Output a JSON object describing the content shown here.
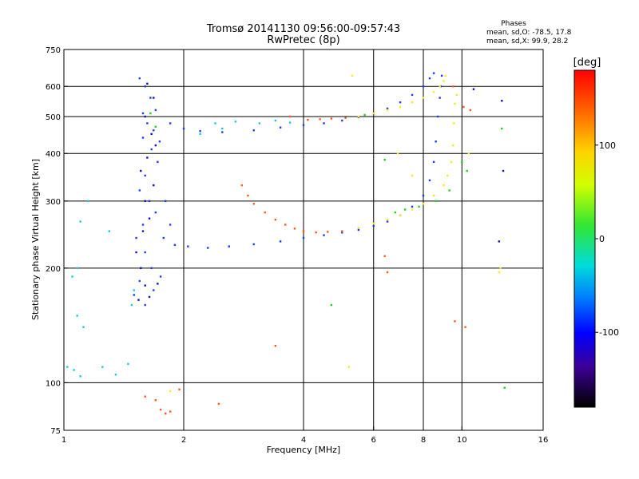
{
  "chart_data": {
    "type": "scatter",
    "title": "Tromsø 20141130 09:56:00-09:57:43",
    "subtitle": "RwPretec (8p)",
    "stats": {
      "heading": "Phases",
      "line_o": "mean, sd,O:  -78.5, 17.8",
      "line_x": "mean, sd,X:  99.9, 28.2"
    },
    "xlabel": "Frequency [MHz]",
    "ylabel": "Stationary phase Virtual Height [km]",
    "x_scale": "log2",
    "y_scale": "log",
    "xlim": [
      1,
      16
    ],
    "ylim": [
      75,
      750
    ],
    "x_ticks": [
      1,
      2,
      4,
      6,
      8,
      10,
      16
    ],
    "y_ticks": [
      75,
      100,
      200,
      300,
      400,
      500,
      600,
      750
    ],
    "x_grid": [
      2,
      4,
      6,
      8,
      10
    ],
    "y_grid": [
      100,
      200,
      300,
      400,
      500,
      600
    ],
    "grid": true,
    "colorbar": {
      "label": "[deg]",
      "range": [
        -180,
        180
      ],
      "ticks": [
        100,
        0,
        -100
      ]
    },
    "series": [
      {
        "color": "#1a3cff",
        "points": [
          [
            1.55,
            630
          ],
          [
            1.6,
            600
          ],
          [
            1.65,
            560
          ],
          [
            1.7,
            520
          ],
          [
            1.62,
            480
          ],
          [
            1.58,
            440
          ],
          [
            1.66,
            410
          ],
          [
            1.72,
            380
          ],
          [
            1.6,
            350
          ],
          [
            1.55,
            320
          ],
          [
            1.64,
            300
          ],
          [
            1.7,
            280
          ],
          [
            1.58,
            260
          ],
          [
            1.52,
            240
          ],
          [
            1.6,
            220
          ],
          [
            1.66,
            200
          ],
          [
            1.55,
            185
          ],
          [
            1.5,
            170
          ],
          [
            1.6,
            160
          ],
          [
            1.68,
            175
          ],
          [
            1.75,
            190
          ],
          [
            1.58,
            510
          ],
          [
            1.68,
            460
          ],
          [
            1.74,
            430
          ],
          [
            1.8,
            300
          ],
          [
            1.85,
            260
          ],
          [
            1.78,
            240
          ],
          [
            1.9,
            230
          ],
          [
            2.05,
            228
          ],
          [
            2.3,
            226
          ],
          [
            2.6,
            228
          ],
          [
            3.0,
            231
          ],
          [
            3.5,
            235
          ],
          [
            4.0,
            240
          ],
          [
            4.5,
            244
          ],
          [
            5.0,
            248
          ],
          [
            5.5,
            252
          ],
          [
            6.0,
            258
          ],
          [
            6.5,
            265
          ],
          [
            7.0,
            275
          ],
          [
            7.5,
            290
          ],
          [
            8.0,
            310
          ],
          [
            8.3,
            340
          ],
          [
            8.5,
            380
          ],
          [
            8.6,
            430
          ],
          [
            8.7,
            500
          ],
          [
            8.8,
            560
          ],
          [
            8.85,
            600
          ],
          [
            8.9,
            640
          ],
          [
            1.85,
            480
          ],
          [
            2.0,
            465
          ],
          [
            2.2,
            458
          ],
          [
            2.5,
            455
          ],
          [
            3.0,
            460
          ],
          [
            3.5,
            468
          ],
          [
            4.0,
            475
          ],
          [
            4.5,
            480
          ],
          [
            5.0,
            488
          ],
          [
            5.5,
            498
          ],
          [
            6.0,
            510
          ],
          [
            6.5,
            525
          ],
          [
            7.0,
            545
          ],
          [
            7.5,
            570
          ],
          [
            8.0,
            600
          ],
          [
            8.3,
            630
          ],
          [
            8.5,
            650
          ]
        ]
      },
      {
        "color": "#19c8e8",
        "points": [
          [
            1.05,
            190
          ],
          [
            1.08,
            200
          ],
          [
            1.1,
            265
          ],
          [
            1.15,
            300
          ],
          [
            1.08,
            150
          ],
          [
            1.12,
            140
          ],
          [
            1.02,
            110
          ],
          [
            1.06,
            108
          ],
          [
            1.1,
            104
          ],
          [
            1.25,
            110
          ],
          [
            1.35,
            105
          ],
          [
            1.45,
            112
          ],
          [
            1.48,
            160
          ],
          [
            1.5,
            175
          ],
          [
            1.3,
            250
          ],
          [
            2.4,
            480
          ],
          [
            2.7,
            485
          ],
          [
            3.1,
            480
          ],
          [
            3.4,
            488
          ],
          [
            3.7,
            482
          ],
          [
            2.2,
            450
          ],
          [
            2.5,
            465
          ]
        ]
      },
      {
        "color": "#ff5a1e",
        "points": [
          [
            2.8,
            330
          ],
          [
            2.9,
            310
          ],
          [
            3.0,
            295
          ],
          [
            3.2,
            280
          ],
          [
            3.4,
            268
          ],
          [
            3.6,
            260
          ],
          [
            3.8,
            254
          ],
          [
            4.0,
            250
          ],
          [
            4.3,
            248
          ],
          [
            4.6,
            249
          ],
          [
            5.0,
            250
          ],
          [
            4.1,
            490
          ],
          [
            4.4,
            492
          ],
          [
            4.7,
            494
          ],
          [
            5.1,
            496
          ],
          [
            3.7,
            500
          ],
          [
            1.75,
            85
          ],
          [
            1.8,
            83
          ],
          [
            1.85,
            84
          ],
          [
            1.7,
            90
          ],
          [
            2.45,
            88
          ],
          [
            1.95,
            96
          ],
          [
            1.6,
            92
          ],
          [
            6.5,
            195
          ],
          [
            6.4,
            215
          ],
          [
            10.2,
            140
          ],
          [
            9.6,
            145
          ],
          [
            3.4,
            125
          ],
          [
            10.5,
            520
          ],
          [
            10.1,
            530
          ],
          [
            9.5,
            600
          ]
        ]
      },
      {
        "color": "#ffe61a",
        "points": [
          [
            5.5,
            255
          ],
          [
            6.0,
            262
          ],
          [
            6.5,
            268
          ],
          [
            7.0,
            275
          ],
          [
            7.5,
            285
          ],
          [
            8.0,
            295
          ],
          [
            8.5,
            310
          ],
          [
            9.0,
            330
          ],
          [
            9.2,
            350
          ],
          [
            9.4,
            380
          ],
          [
            9.5,
            420
          ],
          [
            9.55,
            480
          ],
          [
            9.6,
            540
          ],
          [
            5.5,
            500
          ],
          [
            6.0,
            510
          ],
          [
            6.5,
            520
          ],
          [
            7.0,
            530
          ],
          [
            7.5,
            545
          ],
          [
            8.0,
            560
          ],
          [
            8.5,
            580
          ],
          [
            8.8,
            600
          ],
          [
            9.0,
            620
          ],
          [
            9.1,
            640
          ],
          [
            7.5,
            350
          ],
          [
            9.7,
            570
          ],
          [
            10.4,
            400
          ],
          [
            5.3,
            640
          ],
          [
            6.9,
            400
          ],
          [
            5.2,
            110
          ],
          [
            1.85,
            95
          ],
          [
            12.5,
            200
          ],
          [
            12.4,
            195
          ]
        ]
      },
      {
        "color": "#1ed21e",
        "points": [
          [
            6.8,
            280
          ],
          [
            7.2,
            285
          ],
          [
            7.8,
            290
          ],
          [
            8.6,
            300
          ],
          [
            9.3,
            320
          ],
          [
            10.3,
            360
          ],
          [
            10.0,
            380
          ],
          [
            6.4,
            385
          ],
          [
            4.7,
            160
          ],
          [
            12.6,
            465
          ],
          [
            12.8,
            97
          ],
          [
            1.65,
            510
          ],
          [
            1.7,
            470
          ],
          [
            5.7,
            505
          ]
        ]
      },
      {
        "color": "#0a14c8",
        "points": [
          [
            1.62,
            610
          ],
          [
            1.68,
            560
          ],
          [
            1.6,
            500
          ],
          [
            1.66,
            450
          ],
          [
            1.7,
            420
          ],
          [
            1.62,
            390
          ],
          [
            1.56,
            360
          ],
          [
            1.68,
            330
          ],
          [
            1.6,
            300
          ],
          [
            1.64,
            270
          ],
          [
            1.58,
            250
          ],
          [
            1.52,
            220
          ],
          [
            1.56,
            200
          ],
          [
            1.6,
            180
          ],
          [
            1.54,
            165
          ],
          [
            1.64,
            168
          ],
          [
            1.72,
            182
          ],
          [
            12.6,
            550
          ],
          [
            12.7,
            360
          ],
          [
            12.4,
            235
          ],
          [
            10.7,
            590
          ]
        ]
      }
    ]
  }
}
